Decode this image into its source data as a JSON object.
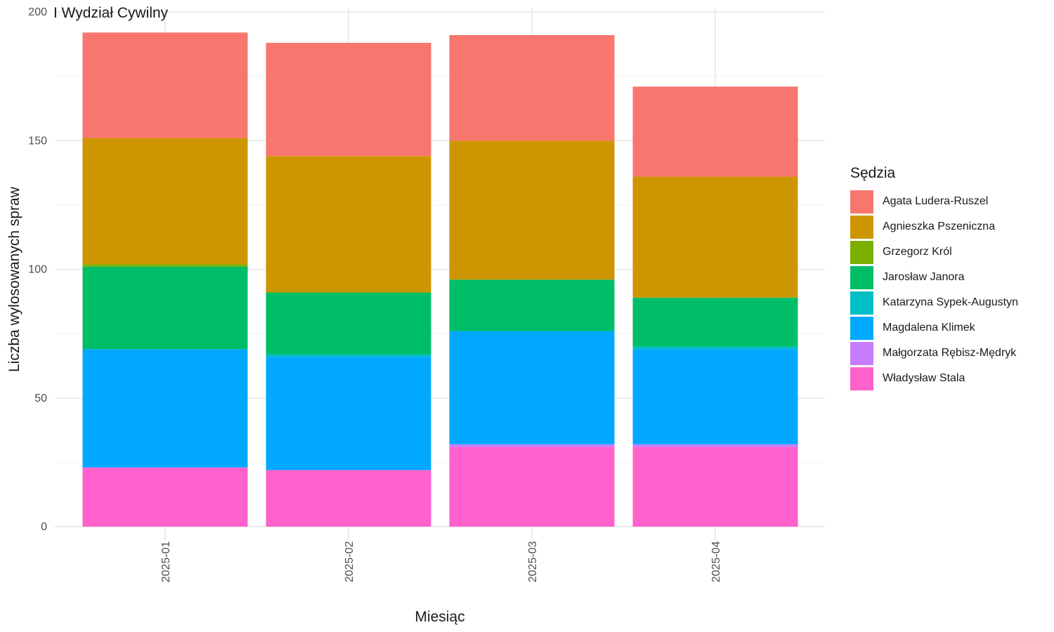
{
  "chart_data": {
    "type": "bar",
    "stacked": true,
    "title": "I Wydział Cywilny",
    "xlabel": "Miesiąc",
    "ylabel": "Liczba wylosowanych spraw",
    "ylim": [
      0,
      200
    ],
    "yticks": [
      0,
      50,
      100,
      150,
      200
    ],
    "grid": true,
    "legend_title": "Sędzia",
    "legend_position": "right",
    "categories": [
      "2025-01",
      "2025-02",
      "2025-03",
      "2025-04"
    ],
    "series": [
      {
        "name": "Władysław Stala",
        "color": "#FF61CC",
        "values": [
          23,
          22,
          31,
          31
        ]
      },
      {
        "name": "Małgorzata Rębisz-Mędryk",
        "color": "#C77CFF",
        "values": [
          0,
          0,
          1,
          1
        ]
      },
      {
        "name": "Magdalena Klimek",
        "color": "#00A9FF",
        "values": [
          46,
          44,
          44,
          37
        ]
      },
      {
        "name": "Katarzyna Sypek-Augustyn",
        "color": "#00BFC4",
        "values": [
          0,
          1,
          0,
          1
        ]
      },
      {
        "name": "Jarosław Janora",
        "color": "#00BE67",
        "values": [
          32,
          24,
          20,
          19
        ]
      },
      {
        "name": "Grzegorz Król",
        "color": "#7CAE00",
        "values": [
          1,
          0,
          0,
          0
        ]
      },
      {
        "name": "Agnieszka Pszeniczna",
        "color": "#CD9600",
        "values": [
          49,
          53,
          54,
          47
        ]
      },
      {
        "name": "Agata Ludera-Ruszel",
        "color": "#F8766D",
        "values": [
          41,
          44,
          41,
          35
        ]
      }
    ],
    "legend": [
      {
        "name": "Agata Ludera-Ruszel",
        "color": "#F8766D"
      },
      {
        "name": "Agnieszka Pszeniczna",
        "color": "#CD9600"
      },
      {
        "name": "Grzegorz Król",
        "color": "#7CAE00"
      },
      {
        "name": "Jarosław Janora",
        "color": "#00BE67"
      },
      {
        "name": "Katarzyna Sypek-Augustyn",
        "color": "#00BFC4"
      },
      {
        "name": "Magdalena Klimek",
        "color": "#00A9FF"
      },
      {
        "name": "Małgorzata Rębisz-Mędryk",
        "color": "#C77CFF"
      },
      {
        "name": "Władysław Stala",
        "color": "#FF61CC"
      }
    ]
  }
}
